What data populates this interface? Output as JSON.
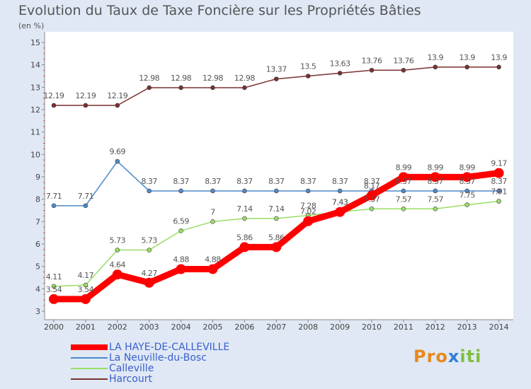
{
  "chart_data": {
    "type": "line",
    "title": "Evolution du Taux de Taxe Foncière sur les Propriétés Bâties",
    "ylabel": "(en %)",
    "x": [
      "2000",
      "2001",
      "2002",
      "2003",
      "2004",
      "2005",
      "2006",
      "2007",
      "2008",
      "2009",
      "2010",
      "2011",
      "2012",
      "2013",
      "2014"
    ],
    "ylim": [
      3,
      15
    ],
    "yticks": [
      3,
      4,
      5,
      6,
      7,
      8,
      9,
      10,
      11,
      12,
      13,
      14,
      15
    ],
    "grid": false,
    "series": [
      {
        "name": "LA HAYE-DE-CALLEVILLE",
        "color": "#ff0000",
        "values": [
          3.54,
          3.54,
          4.64,
          4.27,
          4.88,
          4.88,
          5.86,
          5.86,
          7.02,
          7.43,
          8.17,
          8.99,
          8.99,
          8.99,
          9.17
        ],
        "labels": [
          "3.54",
          "3.54",
          "4.64",
          "4.27",
          "4.88",
          "4.88",
          "5.86",
          "5.86",
          "7.02",
          "7.43",
          "8.17",
          "8.99",
          "8.99",
          "8.99",
          "9.17"
        ]
      },
      {
        "name": "La Neuville-du-Bosc",
        "color": "#4d8ac9",
        "values": [
          7.71,
          7.71,
          9.69,
          8.37,
          8.37,
          8.37,
          8.37,
          8.37,
          8.37,
          8.37,
          8.37,
          8.37,
          8.37,
          8.37,
          8.37
        ],
        "labels": [
          "7.71",
          "7.71",
          "9.69",
          "8.37",
          "8.37",
          "8.37",
          "8.37",
          "8.37",
          "8.37",
          "8.37",
          "8.37",
          "8.37",
          "8.37",
          "8.37",
          "8.37"
        ]
      },
      {
        "name": "Calleville",
        "color": "#99dd66",
        "values": [
          4.11,
          4.17,
          5.73,
          5.73,
          6.59,
          7,
          7.14,
          7.14,
          7.28,
          7.43,
          7.57,
          7.57,
          7.57,
          7.75,
          7.91
        ],
        "labels": [
          "4.11",
          "4.17",
          "5.73",
          "5.73",
          "6.59",
          "7",
          "7.14",
          "7.14",
          "7.28",
          "7.43",
          "7.57",
          "7.57",
          "7.57",
          "7.75",
          "7.91"
        ]
      },
      {
        "name": "Harcourt",
        "color": "#7a3030",
        "values": [
          12.19,
          12.19,
          12.19,
          12.98,
          12.98,
          12.98,
          12.98,
          13.37,
          13.5,
          13.63,
          13.76,
          13.76,
          13.9,
          13.9,
          13.9
        ],
        "labels": [
          "12.19",
          "12.19",
          "12.19",
          "12.98",
          "12.98",
          "12.98",
          "12.98",
          "13.37",
          "13.5",
          "13.63",
          "13.76",
          "13.76",
          "13.9",
          "13.9",
          "13.9"
        ]
      }
    ],
    "legend": "bottom-left"
  },
  "logo": {
    "part1": "Pro",
    "part2": "x",
    "part3": "iti"
  }
}
